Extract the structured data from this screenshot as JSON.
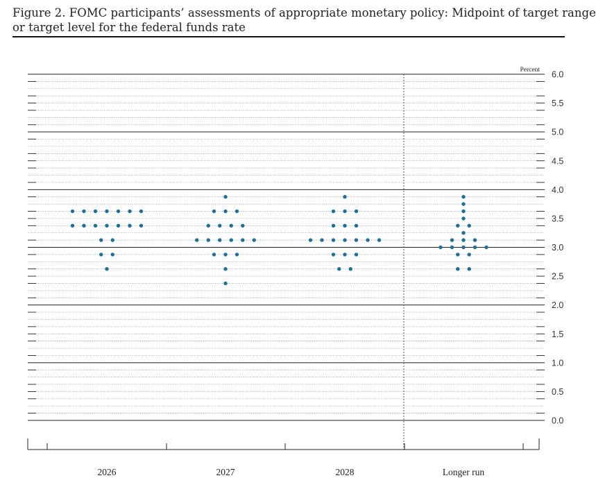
{
  "title": {
    "line1": "Figure 2. FOMC participants’ assessments of appropriate monetary policy: Midpoint of target range",
    "line2": "or target level for the federal funds rate"
  },
  "colors": {
    "dot": "#1f6f96",
    "major_grid": "#222222",
    "minor_grid": "#8a8a8a",
    "axis": "#222222",
    "separator": "#555555"
  },
  "chart_data": {
    "type": "scatter",
    "subtype": "dot-plot",
    "unit_label": "Percent",
    "y_axis_side": "right",
    "ylim": [
      0.0,
      6.0
    ],
    "yticks": [
      "0.0",
      "0.5",
      "1.0",
      "1.5",
      "2.0",
      "2.5",
      "3.0",
      "3.5",
      "4.0",
      "4.5",
      "5.0",
      "5.5",
      "6.0"
    ],
    "ytick_values": [
      0.0,
      0.5,
      1.0,
      1.5,
      2.0,
      2.5,
      3.0,
      3.5,
      4.0,
      4.5,
      5.0,
      5.5,
      6.0
    ],
    "grid": "solid at whole percents, dotted at 0.125 steps",
    "separator_before": "Longer run",
    "categories": [
      "2026",
      "2027",
      "2028",
      "Longer run"
    ],
    "dots": [
      {
        "category": "2026",
        "counts": [
          {
            "y": 3.625,
            "n": 7
          },
          {
            "y": 3.375,
            "n": 7
          },
          {
            "y": 3.125,
            "n": 2
          },
          {
            "y": 2.875,
            "n": 2
          },
          {
            "y": 2.625,
            "n": 1
          }
        ]
      },
      {
        "category": "2027",
        "counts": [
          {
            "y": 3.875,
            "n": 1
          },
          {
            "y": 3.625,
            "n": 3
          },
          {
            "y": 3.375,
            "n": 4
          },
          {
            "y": 3.125,
            "n": 6
          },
          {
            "y": 2.875,
            "n": 3
          },
          {
            "y": 2.625,
            "n": 1
          },
          {
            "y": 2.375,
            "n": 1
          }
        ]
      },
      {
        "category": "2028",
        "counts": [
          {
            "y": 3.875,
            "n": 1
          },
          {
            "y": 3.625,
            "n": 3
          },
          {
            "y": 3.375,
            "n": 3
          },
          {
            "y": 3.125,
            "n": 7
          },
          {
            "y": 2.875,
            "n": 3
          },
          {
            "y": 2.625,
            "n": 2
          }
        ]
      },
      {
        "category": "Longer run",
        "counts": [
          {
            "y": 3.875,
            "n": 1
          },
          {
            "y": 3.75,
            "n": 1
          },
          {
            "y": 3.625,
            "n": 1
          },
          {
            "y": 3.5,
            "n": 1
          },
          {
            "y": 3.375,
            "n": 2
          },
          {
            "y": 3.25,
            "n": 1
          },
          {
            "y": 3.125,
            "n": 3
          },
          {
            "y": 3.0,
            "n": 5
          },
          {
            "y": 2.875,
            "n": 2
          },
          {
            "y": 2.625,
            "n": 2
          }
        ]
      }
    ]
  }
}
